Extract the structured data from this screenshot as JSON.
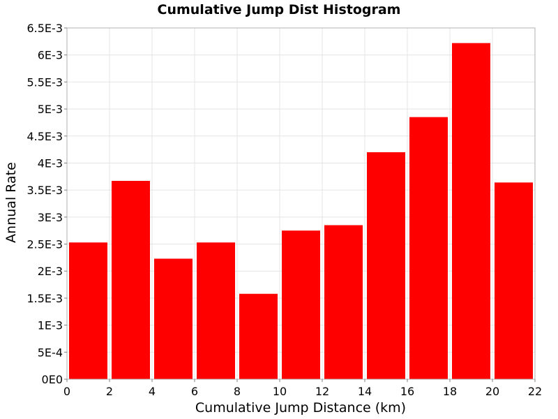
{
  "chart_data": {
    "type": "bar",
    "title": "Cumulative Jump Dist Histogram",
    "xlabel": "Cumulative Jump Distance (km)",
    "ylabel": "Annual Rate",
    "xlim": [
      0,
      22
    ],
    "ylim": [
      0,
      0.0065
    ],
    "x_ticks": [
      0,
      2,
      4,
      6,
      8,
      10,
      12,
      14,
      16,
      18,
      20,
      22
    ],
    "y_ticks": [
      0,
      0.0005,
      0.001,
      0.0015,
      0.002,
      0.0025,
      0.003,
      0.0035,
      0.004,
      0.0045,
      0.005,
      0.0055,
      0.006,
      0.0065
    ],
    "y_tick_labels": [
      "0E0",
      "5E-4",
      "1E-3",
      "1.5E-3",
      "2E-3",
      "2.5E-3",
      "3E-3",
      "3.5E-3",
      "4E-3",
      "4.5E-3",
      "5E-3",
      "5.5E-3",
      "6E-3",
      "6.5E-3"
    ],
    "bin_width": 2,
    "bins": [
      {
        "x_start": 0,
        "x_end": 2,
        "value": 0.00253
      },
      {
        "x_start": 2,
        "x_end": 4,
        "value": 0.00367
      },
      {
        "x_start": 4,
        "x_end": 6,
        "value": 0.00223
      },
      {
        "x_start": 6,
        "x_end": 8,
        "value": 0.00253
      },
      {
        "x_start": 8,
        "x_end": 10,
        "value": 0.00158
      },
      {
        "x_start": 10,
        "x_end": 12,
        "value": 0.00275
      },
      {
        "x_start": 12,
        "x_end": 14,
        "value": 0.00285
      },
      {
        "x_start": 14,
        "x_end": 16,
        "value": 0.0042
      },
      {
        "x_start": 16,
        "x_end": 18,
        "value": 0.00485
      },
      {
        "x_start": 18,
        "x_end": 20,
        "value": 0.00622
      },
      {
        "x_start": 20,
        "x_end": 22,
        "value": 0.00364
      }
    ],
    "bar_color": "#ff0000",
    "grid": true,
    "legend": false
  }
}
